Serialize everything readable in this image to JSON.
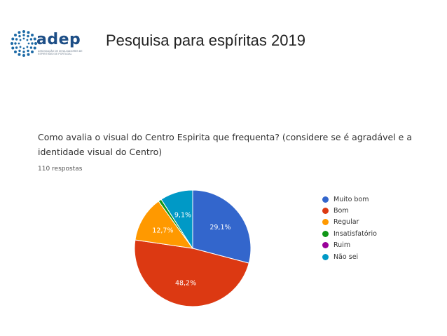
{
  "header": {
    "logo_text": "adep",
    "logo_subtext": "Associação de Divulgadores de Espiritismo de Portugal",
    "title": "Pesquisa para espíritas  2019"
  },
  "chart_data": {
    "type": "pie",
    "title": "Como avalia o visual do Centro Espirita que frequenta? (considere se é agradável e a identidade visual do Centro)",
    "subtitle": "110 respostas",
    "legend_position": "right",
    "slices": [
      {
        "label": "Muito bom",
        "value": 29.1,
        "display": "29,1%",
        "color": "#3366cc"
      },
      {
        "label": "Bom",
        "value": 48.2,
        "display": "48,2%",
        "color": "#dc3912"
      },
      {
        "label": "Regular",
        "value": 12.7,
        "display": "12,7%",
        "color": "#ff9900"
      },
      {
        "label": "Insatisfatório",
        "value": 0.9,
        "display": "",
        "color": "#109618"
      },
      {
        "label": "Ruim",
        "value": 0.0,
        "display": "",
        "color": "#990099"
      },
      {
        "label": "Não sei",
        "value": 9.1,
        "display": "9,1%",
        "color": "#0099c6"
      }
    ]
  }
}
